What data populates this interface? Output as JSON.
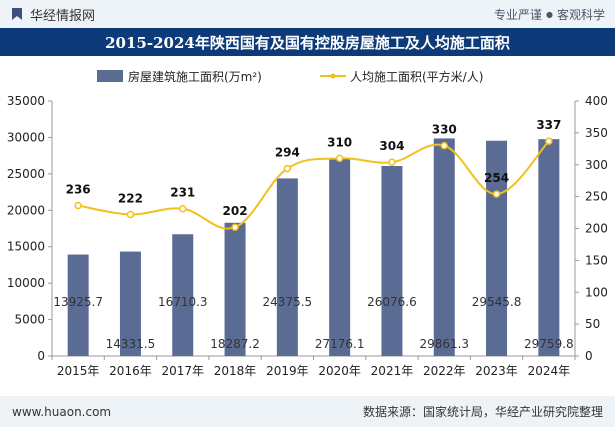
{
  "header": {
    "brand": "华经情报网",
    "tagline_left": "专业严谨",
    "tagline_dot": "●",
    "tagline_right": "客观科学"
  },
  "title": "2015-2024年陕西国有及国有控股房屋施工及人均施工面积",
  "footer": {
    "url": "www.huaon.com",
    "source": "数据来源：国家统计局，华经产业研究院整理"
  },
  "colors": {
    "bar": "#5a6b94",
    "line": "#f2c01a",
    "title_bg": "#0d3b7a"
  },
  "chart_data": {
    "type": "bar+line",
    "categories": [
      "2015年",
      "2016年",
      "2017年",
      "2018年",
      "2019年",
      "2020年",
      "2021年",
      "2022年",
      "2023年",
      "2024年"
    ],
    "series": [
      {
        "name": "房屋建筑施工面积(万m²)",
        "type": "bar",
        "axis": "left",
        "values": [
          13925.7,
          14331.5,
          16710.3,
          18287.2,
          24375.5,
          27176.1,
          26076.6,
          29861.3,
          29545.8,
          29759.8
        ],
        "labels": [
          "13925.7",
          "14331.5",
          "16710.3",
          "18287.2",
          "24375.5",
          "27176.1",
          "26076.6",
          "29861.3",
          "29545.8",
          "29759.8"
        ]
      },
      {
        "name": "人均施工面积(平方米/人)",
        "type": "line",
        "axis": "right",
        "values": [
          236,
          222,
          231,
          202,
          294,
          310,
          304,
          330,
          254,
          337
        ],
        "labels": [
          "236",
          "222",
          "231",
          "202",
          "294",
          "310",
          "304",
          "330",
          "254",
          "337"
        ]
      }
    ],
    "y_left": {
      "min": 0,
      "max": 35000,
      "ticks": [
        "0",
        "5000",
        "10000",
        "15000",
        "20000",
        "25000",
        "30000",
        "35000"
      ]
    },
    "y_right": {
      "min": 0,
      "max": 400,
      "ticks": [
        "0",
        "50",
        "100",
        "150",
        "200",
        "250",
        "300",
        "350",
        "400"
      ]
    },
    "legend_position": "top-center",
    "grid": false
  }
}
